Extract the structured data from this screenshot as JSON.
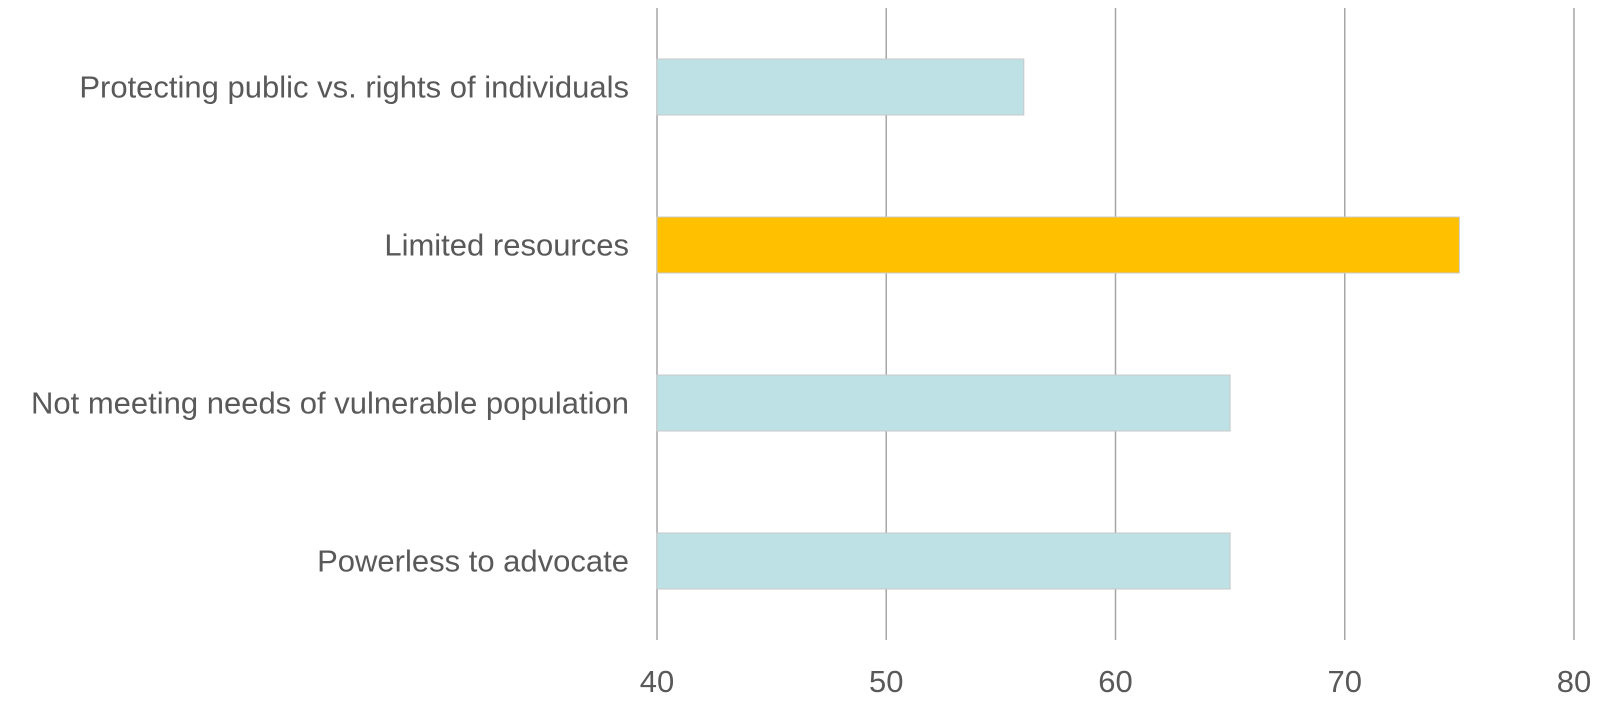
{
  "chart_data": {
    "type": "bar",
    "orientation": "horizontal",
    "title": "",
    "xlabel": "",
    "ylabel": "",
    "categories": [
      "Protecting public vs. rights of individuals",
      "Limited resources",
      "Not meeting needs of vulnerable population",
      "Powerless to advocate"
    ],
    "values": [
      56,
      75,
      65,
      65
    ],
    "xlim": [
      40,
      80
    ],
    "ticks": [
      40,
      50,
      60,
      70,
      80
    ],
    "tick_labels": [
      "40",
      "50",
      "60",
      "70",
      "80"
    ],
    "grid": "vertical",
    "legend": "none",
    "colors": {
      "default_bar": "#bde1e4",
      "highlight_bar": "#ffc000",
      "bar_border": "#c9c9c9",
      "gridline": "#a6a6a6",
      "text": "#595959"
    },
    "highlight_index": 1
  }
}
